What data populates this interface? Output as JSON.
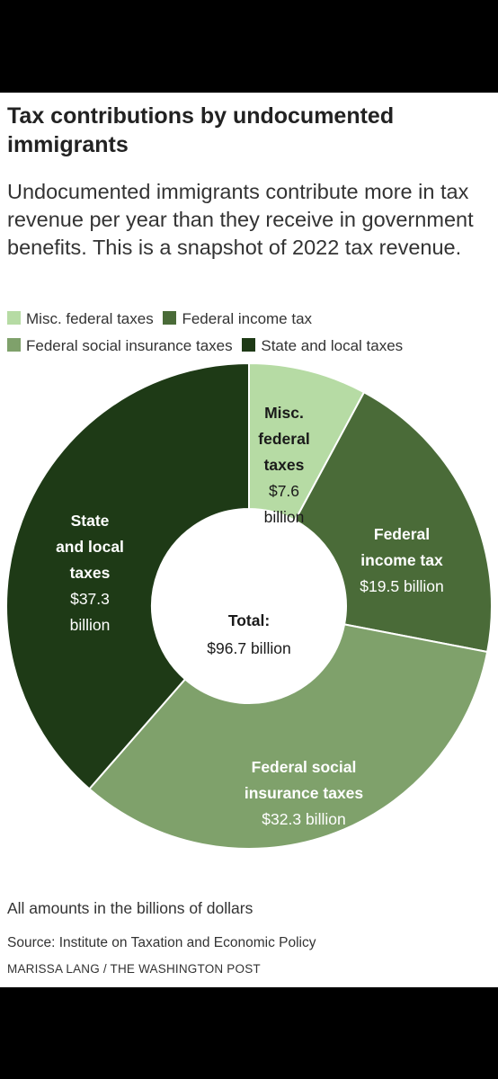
{
  "title": "Tax contributions by undocumented immigrants",
  "subtitle": "Undocumented immigrants contribute more in tax revenue per year than they receive in government benefits. This is a snapshot of 2022 tax revenue.",
  "legend": [
    {
      "label": "Misc. federal taxes",
      "color": "#b6dba4"
    },
    {
      "label": "Federal income tax",
      "color": "#4a6b38"
    },
    {
      "label": "Federal social insurance taxes",
      "color": "#7fa16b"
    },
    {
      "label": "State and local taxes",
      "color": "#1e3a16"
    }
  ],
  "chart_data": {
    "type": "pie",
    "donut": true,
    "start": "12 o'clock",
    "direction": "clockwise",
    "slices": [
      {
        "name": "Misc. federal taxes",
        "label_lines": [
          "Misc.",
          "federal",
          "taxes"
        ],
        "value_text": [
          "$7.6",
          "billion"
        ],
        "value": 7.6,
        "color": "#b6dba4",
        "text_color": "#1a1a1a"
      },
      {
        "name": "Federal income tax",
        "label_lines": [
          "Federal",
          "income tax"
        ],
        "value_text": [
          "$19.5 billion"
        ],
        "value": 19.5,
        "color": "#4a6b38",
        "text_color": "#ffffff"
      },
      {
        "name": "Federal social insurance taxes",
        "label_lines": [
          "Federal social",
          "insurance taxes"
        ],
        "value_text": [
          "$32.3 billion"
        ],
        "value": 32.3,
        "color": "#7fa16b",
        "text_color": "#ffffff"
      },
      {
        "name": "State and local taxes",
        "label_lines": [
          "State",
          "and local",
          "taxes"
        ],
        "value_text": [
          "$37.3",
          "billion"
        ],
        "value": 37.3,
        "color": "#1e3a16",
        "text_color": "#ffffff"
      }
    ],
    "total_label": "Total:",
    "total_value": "$96.7 billion"
  },
  "note": "All amounts in the billions of dollars",
  "source": "Source: Institute on Taxation and Economic Policy",
  "credit": "MARISSA LANG / THE WASHINGTON POST"
}
